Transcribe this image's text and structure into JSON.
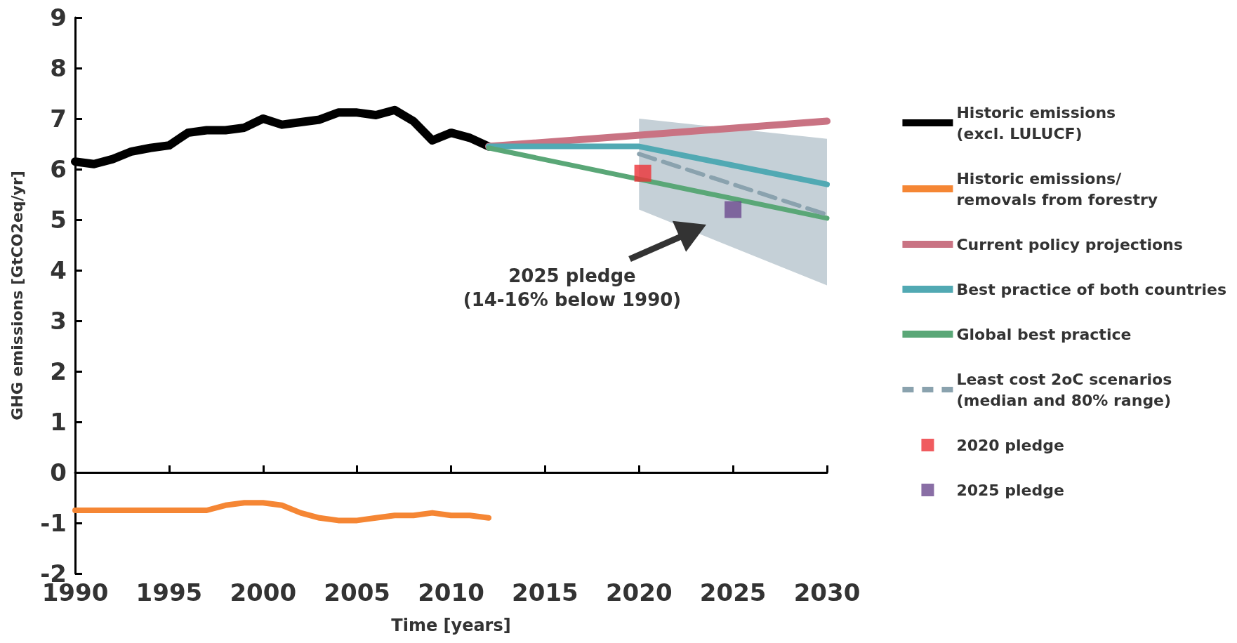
{
  "chart_data": {
    "type": "line",
    "xlabel": "Time [years]",
    "ylabel": "GHG emissions [GtCO2eq/yr]",
    "xlim": [
      1990,
      2030
    ],
    "xticks": [
      1990,
      1995,
      2000,
      2005,
      2010,
      2015,
      2020,
      2025,
      2030
    ],
    "ylim": [
      -2,
      9
    ],
    "yticks": [
      -2,
      -1,
      0,
      1,
      2,
      3,
      4,
      5,
      6,
      7,
      8,
      9
    ],
    "legend": "right",
    "annotations": [
      "2025 pledge\n(14-16% below 1990)"
    ],
    "series": [
      {
        "name": "Historic emissions\n(excl. LULUCF)",
        "color": "#000000",
        "x": [
          1990,
          1991,
          1992,
          1993,
          1994,
          1995,
          1996,
          1997,
          1998,
          1999,
          2000,
          2001,
          2002,
          2003,
          2004,
          2005,
          2006,
          2007,
          2008,
          2009,
          2010,
          2011,
          2012
        ],
        "values": [
          6.15,
          6.1,
          6.2,
          6.35,
          6.42,
          6.47,
          6.72,
          6.77,
          6.77,
          6.82,
          7.0,
          6.88,
          6.93,
          6.98,
          7.12,
          7.12,
          7.07,
          7.17,
          6.95,
          6.57,
          6.72,
          6.62,
          6.45
        ]
      },
      {
        "name": "Historic emissions/\nremovals from forestry",
        "color": "#f58634",
        "x": [
          1990,
          1997,
          1998,
          1999,
          2000,
          2001,
          2002,
          2003,
          2004,
          2005,
          2006,
          2007,
          2008,
          2009,
          2010,
          2011,
          2012
        ],
        "values": [
          -0.75,
          -0.75,
          -0.65,
          -0.6,
          -0.6,
          -0.65,
          -0.8,
          -0.9,
          -0.95,
          -0.95,
          -0.9,
          -0.85,
          -0.85,
          -0.8,
          -0.85,
          -0.85,
          -0.9
        ]
      },
      {
        "name": "Current policy projections",
        "color": "#c97383",
        "x": [
          2012,
          2030
        ],
        "values": [
          6.45,
          6.95
        ]
      },
      {
        "name": "Best practice of both countries",
        "color": "#51a9b3",
        "x": [
          2012,
          2020,
          2030
        ],
        "values": [
          6.45,
          6.45,
          5.7
        ]
      },
      {
        "name": "Global best practice",
        "color": "#5aa777",
        "x": [
          2012,
          2030
        ],
        "values": [
          6.42,
          5.03
        ]
      },
      {
        "name": "Least cost 2oC scenarios\n(median and 80% range)",
        "color": "#8aa2ae",
        "line_style": "dashed",
        "x": [
          2020,
          2030
        ],
        "values": [
          6.3,
          5.1
        ],
        "lower": [
          5.2,
          3.7
        ],
        "upper": [
          7.0,
          6.6
        ]
      },
      {
        "name": "2020 pledge",
        "type": "scatter",
        "marker": "square",
        "color": "#ec3237",
        "x": [
          2020.2
        ],
        "values": [
          5.92
        ]
      },
      {
        "name": "2025 pledge",
        "type": "scatter",
        "marker": "square",
        "color": "#6c4a8e",
        "x": [
          2025
        ],
        "values": [
          5.2
        ]
      }
    ]
  }
}
